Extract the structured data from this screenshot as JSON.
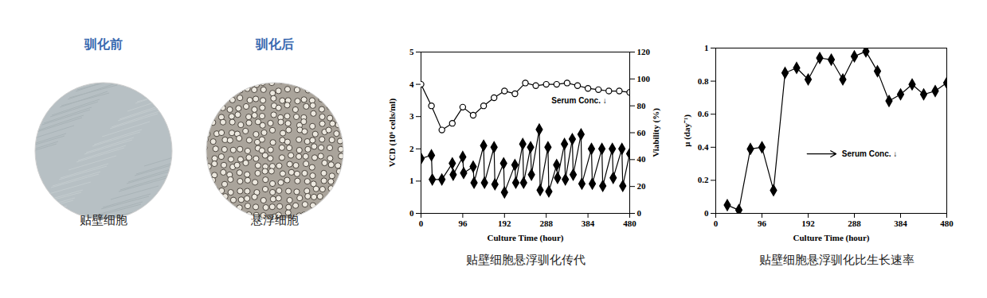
{
  "images": [
    {
      "title": "驯化前",
      "caption": "贴壁细胞"
    },
    {
      "title": "驯化后",
      "caption": "悬浮细胞"
    }
  ],
  "chart_data": [
    {
      "type": "line",
      "caption": "贴壁细胞悬浮驯化传代",
      "x_label": "Culture Time (hour)",
      "y_label": "VCD (10⁶ cells/ml)",
      "y2_label": "Viability (%)",
      "xlim": [
        0,
        480
      ],
      "xticks": [
        0,
        96,
        192,
        288,
        384,
        480
      ],
      "ylim": [
        0,
        5
      ],
      "yticks": [
        0,
        1,
        2,
        3,
        4,
        5
      ],
      "y2lim": [
        0,
        120
      ],
      "y2ticks": [
        0,
        20,
        40,
        60,
        80,
        100,
        120
      ],
      "grid": false,
      "annotations": [
        "Serum Conc. ↓"
      ],
      "series": [
        {
          "name": "VCD",
          "color": "#000000",
          "marker": "diamond",
          "x": [
            0,
            24,
            26,
            48,
            72,
            74,
            96,
            98,
            120,
            122,
            144,
            146,
            168,
            170,
            190,
            192,
            216,
            218,
            234,
            236,
            252,
            254,
            272,
            274,
            292,
            294,
            312,
            314,
            330,
            332,
            348,
            350,
            368,
            370,
            392,
            394,
            416,
            418,
            440,
            442,
            462,
            464,
            480
          ],
          "values": [
            1.7,
            1.8,
            1.05,
            1.05,
            1.55,
            1.2,
            1.75,
            1.25,
            1.45,
            0.95,
            2.1,
            0.95,
            2.05,
            0.9,
            1.55,
            0.65,
            1.5,
            0.95,
            2.15,
            0.95,
            2.05,
            1.2,
            2.6,
            0.72,
            2.05,
            0.68,
            1.5,
            1.1,
            2.15,
            1.05,
            2.3,
            1.2,
            2.45,
            0.92,
            2.0,
            0.92,
            2.0,
            0.85,
            2.0,
            1.1,
            2.0,
            0.85,
            1.85
          ]
        },
        {
          "name": "Viability",
          "axis": "y2",
          "color": "#000000",
          "marker": "open_circle",
          "x": [
            0,
            24,
            48,
            72,
            96,
            120,
            144,
            168,
            192,
            216,
            240,
            264,
            288,
            312,
            336,
            360,
            384,
            408,
            432,
            456,
            480
          ],
          "values": [
            96,
            80,
            62,
            67,
            79,
            73,
            80,
            86,
            91,
            89,
            97,
            95,
            96,
            96,
            97,
            95,
            93,
            92,
            91,
            91,
            90
          ]
        }
      ]
    },
    {
      "type": "line",
      "caption": "贴壁细胞悬浮驯化比生长速率",
      "x_label": "Culture Time (hour)",
      "y_label": "μ (day⁻¹)",
      "xlim": [
        0,
        480
      ],
      "xticks": [
        0,
        96,
        192,
        288,
        384,
        480
      ],
      "ylim": [
        0,
        1
      ],
      "yticks": [
        0,
        0.2,
        0.4,
        0.6,
        0.8,
        1
      ],
      "grid": false,
      "annotations": [
        "Serum Conc. ↓"
      ],
      "series": [
        {
          "name": "μ",
          "color": "#000000",
          "marker": "diamond",
          "x": [
            24,
            48,
            72,
            96,
            120,
            144,
            168,
            192,
            216,
            240,
            264,
            288,
            312,
            336,
            360,
            384,
            408,
            432,
            456,
            480
          ],
          "values": [
            0.05,
            0.02,
            0.39,
            0.4,
            0.14,
            0.85,
            0.88,
            0.81,
            0.94,
            0.93,
            0.81,
            0.95,
            0.98,
            0.86,
            0.68,
            0.72,
            0.78,
            0.72,
            0.74,
            0.79
          ]
        }
      ]
    }
  ]
}
